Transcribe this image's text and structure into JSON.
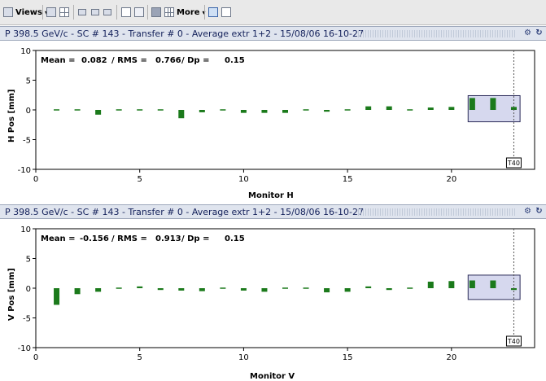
{
  "toolbar": {
    "views_label": "Views",
    "more_label": "More",
    "icons": [
      "views-icon",
      "grid-one-icon",
      "grid-four-icon",
      "layout-two-icon",
      "layout-three-icon",
      "layout-four-icon",
      "page-icon",
      "page-lines-icon",
      "list-icon",
      "table-icon",
      "share-icon",
      "print-icon"
    ]
  },
  "panels": [
    {
      "title": "P 398.5 GeV/c - SC # 143 - Transfer # 0 - Average extr 1+2 - 15/08/06 16-10-27",
      "stats": {
        "mean_label": "Mean =",
        "mean": "0.082",
        "rms_label": "/ RMS =",
        "rms": "0.766",
        "dp_label": "/ Dp =",
        "dp": "0.15"
      },
      "chart_data": {
        "type": "bar",
        "xlabel": "Monitor H",
        "ylabel": "H Pos [mm]",
        "xlim": [
          0,
          24
        ],
        "ylim": [
          -10,
          10
        ],
        "xticks": [
          "0",
          "5",
          "10",
          "15",
          "20"
        ],
        "yticks": [
          "10",
          "5",
          "0",
          "-5",
          "-10"
        ],
        "x": [
          1,
          2,
          3,
          4,
          5,
          6,
          7,
          8,
          9,
          10,
          11,
          12,
          13,
          14,
          15,
          16,
          17,
          18,
          19,
          20,
          21,
          22,
          23
        ],
        "values": [
          0,
          0.1,
          -0.8,
          0.2,
          0,
          -0.2,
          -1.4,
          -0.4,
          0,
          -0.5,
          -0.5,
          -0.5,
          0.1,
          -0.3,
          0,
          0.6,
          0.6,
          0.1,
          0.4,
          0.5,
          2.0,
          2.0,
          0.5
        ],
        "highlight_box": {
          "x_range": [
            20.8,
            23.3
          ],
          "y_range": [
            -2,
            2.4
          ]
        },
        "marker_label": "T40",
        "marker_x": 23
      },
      "colors": {
        "bar": "#1b7a1b",
        "highlight": "#d6d8ee"
      }
    },
    {
      "title": "P 398.5 GeV/c - SC # 143 - Transfer # 0 - Average extr 1+2 - 15/08/06 16-10-27",
      "stats": {
        "mean_label": "Mean =",
        "mean": "-0.156",
        "rms_label": "/ RMS =",
        "rms": "0.913",
        "dp_label": "/ Dp =",
        "dp": "0.15"
      },
      "chart_data": {
        "type": "bar",
        "xlabel": "Monitor V",
        "ylabel": "V Pos [mm]",
        "xlim": [
          0,
          24
        ],
        "ylim": [
          -10,
          10
        ],
        "xticks": [
          "0",
          "5",
          "10",
          "15",
          "20"
        ],
        "yticks": [
          "10",
          "5",
          "0",
          "-5",
          "-10"
        ],
        "x": [
          1,
          2,
          3,
          4,
          5,
          6,
          7,
          8,
          9,
          10,
          11,
          12,
          13,
          14,
          15,
          16,
          17,
          18,
          19,
          20,
          21,
          22,
          23
        ],
        "values": [
          -2.8,
          -1.0,
          -0.6,
          0.1,
          0.3,
          -0.3,
          -0.4,
          -0.5,
          0,
          -0.4,
          -0.6,
          -0.2,
          0,
          -0.7,
          -0.6,
          0.3,
          -0.3,
          0,
          1.1,
          1.2,
          1.3,
          1.3,
          -0.3
        ],
        "highlight_box": {
          "x_range": [
            20.8,
            23.3
          ],
          "y_range": [
            -1.9,
            2.2
          ]
        },
        "marker_label": "T40",
        "marker_x": 23
      },
      "colors": {
        "bar": "#1b7a1b",
        "highlight": "#d6d8ee"
      }
    }
  ]
}
